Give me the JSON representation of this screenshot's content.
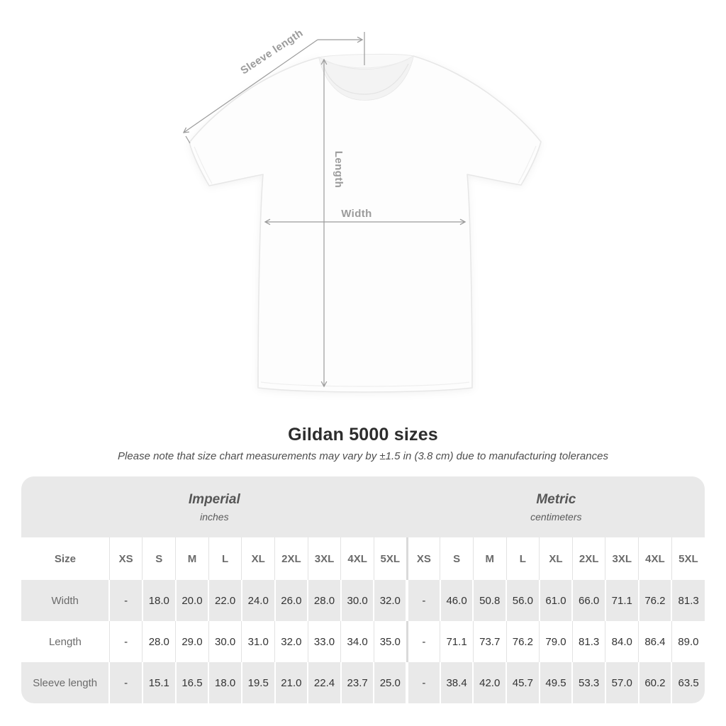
{
  "diagram": {
    "sleeve_length_label": "Sleeve length",
    "length_label": "Length",
    "width_label": "Width",
    "annotation_color": "#9b9b9b",
    "shirt_fill": "#fdfdfd",
    "shirt_edge": "#e7e7e7"
  },
  "chart_data": {
    "type": "table",
    "title": "Gildan 5000 sizes",
    "subtitle": "Please note that size chart measurements may vary by ±1.5 in (3.8 cm) due to manufacturing tolerances",
    "corner_header": "Size",
    "column_groups": [
      {
        "label": "Imperial",
        "unit": "inches",
        "sizes": [
          "XS",
          "S",
          "M",
          "L",
          "XL",
          "2XL",
          "3XL",
          "4XL",
          "5XL"
        ]
      },
      {
        "label": "Metric",
        "unit": "centimeters",
        "sizes": [
          "XS",
          "S",
          "M",
          "L",
          "XL",
          "2XL",
          "3XL",
          "4XL",
          "5XL"
        ]
      }
    ],
    "rows": [
      {
        "label": "Width",
        "imperial": [
          "-",
          "18.0",
          "20.0",
          "22.0",
          "24.0",
          "26.0",
          "28.0",
          "30.0",
          "32.0"
        ],
        "metric": [
          "-",
          "46.0",
          "50.8",
          "56.0",
          "61.0",
          "66.0",
          "71.1",
          "76.2",
          "81.3"
        ]
      },
      {
        "label": "Length",
        "imperial": [
          "-",
          "28.0",
          "29.0",
          "30.0",
          "31.0",
          "32.0",
          "33.0",
          "34.0",
          "35.0"
        ],
        "metric": [
          "-",
          "71.1",
          "73.7",
          "76.2",
          "79.0",
          "81.3",
          "84.0",
          "86.4",
          "89.0"
        ]
      },
      {
        "label": "Sleeve length",
        "imperial": [
          "-",
          "15.1",
          "16.5",
          "18.0",
          "19.5",
          "21.0",
          "22.4",
          "23.7",
          "25.0"
        ],
        "metric": [
          "-",
          "38.4",
          "42.0",
          "45.7",
          "49.5",
          "53.3",
          "57.0",
          "60.2",
          "63.5"
        ]
      }
    ],
    "layout": {
      "stripe_color": "#e9e9e9",
      "header_band_color": "#e9e9e9",
      "value_color": "#333333",
      "label_color": "#6b6b6b"
    }
  }
}
